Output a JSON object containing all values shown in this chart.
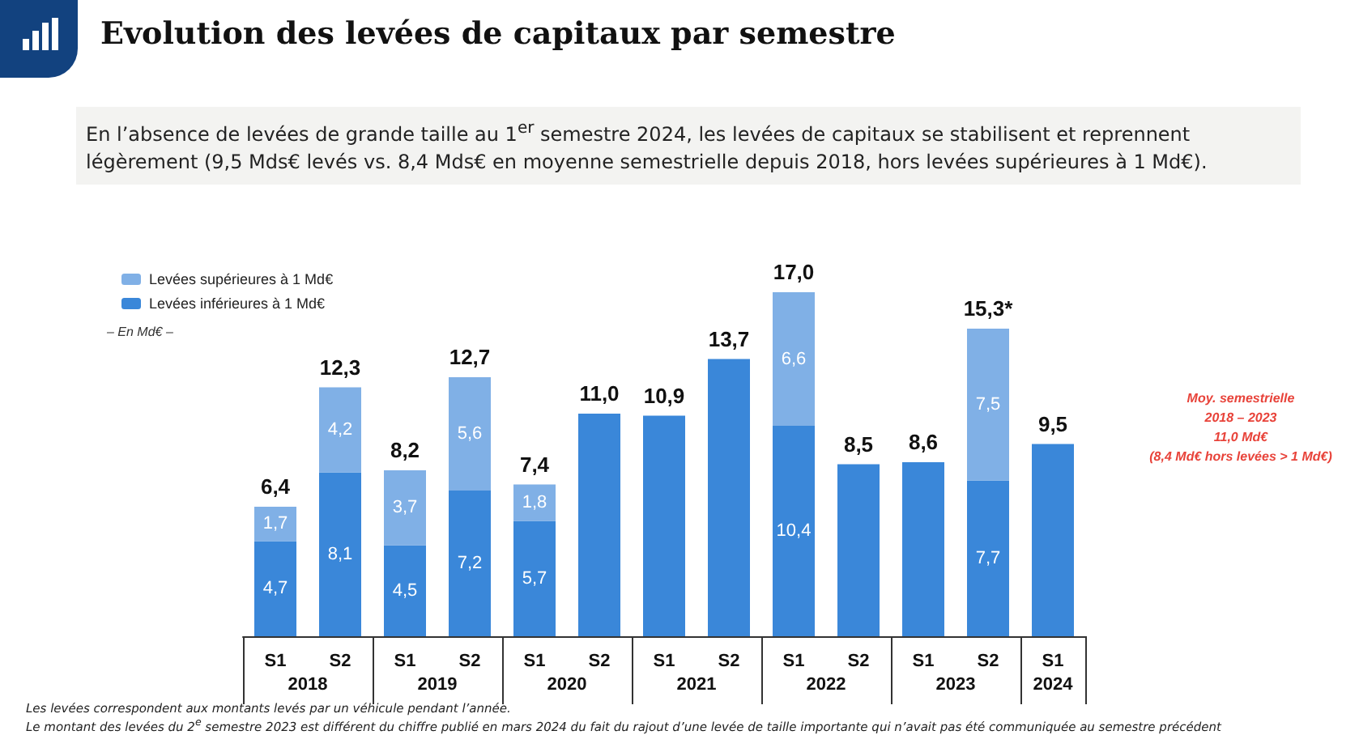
{
  "chart_data": {
    "type": "bar",
    "stacked": true,
    "title": "Evolution des levées de capitaux par semestre",
    "subtitle": "En l’absence de levées de grande taille au 1$^{er}$ semestre 2024, les levées de capitaux se stabilisent et reprennent légèrement (9,5 Mds€ levés vs. 8,4 Mds€ en moyenne semestrielle depuis 2018, hors levées supérieures à 1 Md€).",
    "categories": [
      "S1",
      "S2",
      "S1",
      "S2",
      "S1",
      "S2",
      "S1",
      "S2",
      "S1",
      "S2",
      "S1",
      "S2",
      "S1"
    ],
    "series": [
      {
        "name": "Levées inférieures à 1 Md€",
        "color": "#3a87d9",
        "values": [
          4.7,
          8.1,
          4.5,
          7.2,
          5.7,
          11.0,
          10.9,
          13.7,
          10.4,
          8.5,
          8.6,
          7.7,
          9.5
        ],
        "value_labels": [
          "4,7",
          "8,1",
          "4,5",
          "7,2",
          "5,7",
          null,
          null,
          null,
          "10,4",
          null,
          null,
          "7,7",
          null
        ]
      },
      {
        "name": "Levées supérieures à 1 Md€",
        "color": "#80b0e6",
        "values": [
          1.7,
          4.2,
          3.7,
          5.6,
          1.8,
          null,
          null,
          null,
          6.6,
          null,
          null,
          7.5,
          null
        ],
        "value_labels": [
          "1,7",
          "4,2",
          "3,7",
          "5,6",
          "1,8",
          null,
          null,
          null,
          "6,6",
          null,
          null,
          "7,5",
          null
        ]
      }
    ],
    "totals": [
      "6,4",
      "12,3",
      "8,2",
      "12,7",
      "7,4",
      "11,0",
      "10,9",
      "13,7",
      "17,0",
      "8,5",
      "8,6",
      "15,3*",
      "9,5"
    ],
    "legend": "top left",
    "grid": false,
    "tick_labels": "x",
    "annotations": [
      "– En Md€ –",
      "Moy. semestrielle\n2018 – 2023\n11,0 Md€\n(8,4 Md€ hors levées > 1 Md€)",
      "Les levées correspondent aux montants levés par un véhicule pendant l’année.",
      "Le montant des levées du 2$^{e}$ semestre 2023 est différent du chiffre publié en mars 2024 du fait du rajout d’une levée de taille importante qui n’avait pas été communiquée au semestre précédent",
      "2018",
      "2019",
      "2020",
      "2021",
      "2022",
      "2023",
      "2024"
    ]
  }
}
